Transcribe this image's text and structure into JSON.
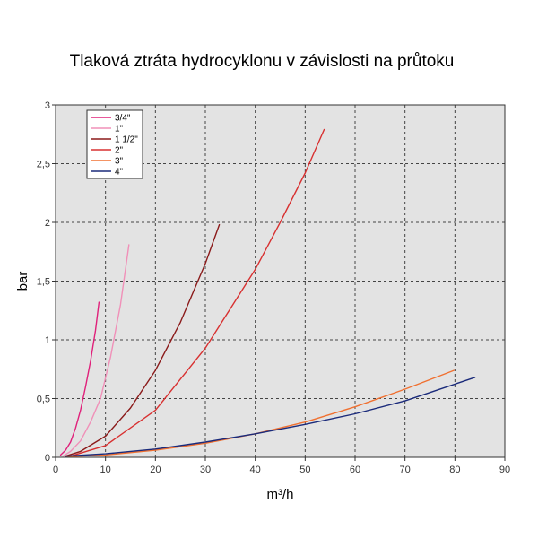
{
  "chart_data": {
    "type": "line",
    "title": "Tlaková ztráta hydrocyklonu v závislosti na průtoku",
    "xlabel": "m³/h",
    "ylabel": "bar",
    "xlim": [
      0,
      90
    ],
    "ylim": [
      0,
      3
    ],
    "x_ticks": [
      0,
      10,
      20,
      30,
      40,
      50,
      60,
      70,
      80,
      90
    ],
    "y_ticks": [
      0,
      0.5,
      1,
      1.5,
      2,
      2.5,
      3
    ],
    "x_tick_labels": [
      "0",
      "10",
      "20",
      "30",
      "40",
      "50",
      "60",
      "70",
      "80",
      "90"
    ],
    "y_tick_labels": [
      "0",
      "0,5",
      "1",
      "1,5",
      "2",
      "2,5",
      "3"
    ],
    "grid": true,
    "legend_position": "top-left",
    "series": [
      {
        "name": "3/4\"",
        "color": "#e0207a",
        "x": [
          1,
          2,
          3,
          4,
          5,
          6,
          7,
          8,
          8.7
        ],
        "y": [
          0.02,
          0.06,
          0.13,
          0.25,
          0.4,
          0.6,
          0.82,
          1.08,
          1.32
        ]
      },
      {
        "name": "1\"",
        "color": "#f090b8",
        "x": [
          1.5,
          3,
          5,
          7,
          9,
          11,
          13,
          14.7
        ],
        "y": [
          0.01,
          0.05,
          0.14,
          0.3,
          0.5,
          0.85,
          1.3,
          1.81
        ]
      },
      {
        "name": "1 1/2\"",
        "color": "#8b1a1a",
        "x": [
          2,
          5,
          10,
          15,
          20,
          25,
          30,
          32.8
        ],
        "y": [
          0.01,
          0.05,
          0.18,
          0.42,
          0.74,
          1.15,
          1.65,
          1.98
        ]
      },
      {
        "name": "2\"",
        "color": "#d83030",
        "x": [
          3,
          10,
          20,
          30,
          40,
          45,
          50,
          53.8
        ],
        "y": [
          0.01,
          0.1,
          0.4,
          0.93,
          1.6,
          2.0,
          2.42,
          2.79
        ]
      },
      {
        "name": "3\"",
        "color": "#f07030",
        "x": [
          2,
          10,
          20,
          30,
          40,
          50,
          60,
          70,
          79.8
        ],
        "y": [
          0.005,
          0.02,
          0.06,
          0.12,
          0.2,
          0.3,
          0.43,
          0.58,
          0.74
        ]
      },
      {
        "name": "4\"",
        "color": "#1a2a7a",
        "x": [
          2,
          10,
          20,
          30,
          40,
          50,
          60,
          70,
          84
        ],
        "y": [
          0.01,
          0.03,
          0.07,
          0.13,
          0.2,
          0.28,
          0.37,
          0.48,
          0.68
        ]
      }
    ]
  }
}
